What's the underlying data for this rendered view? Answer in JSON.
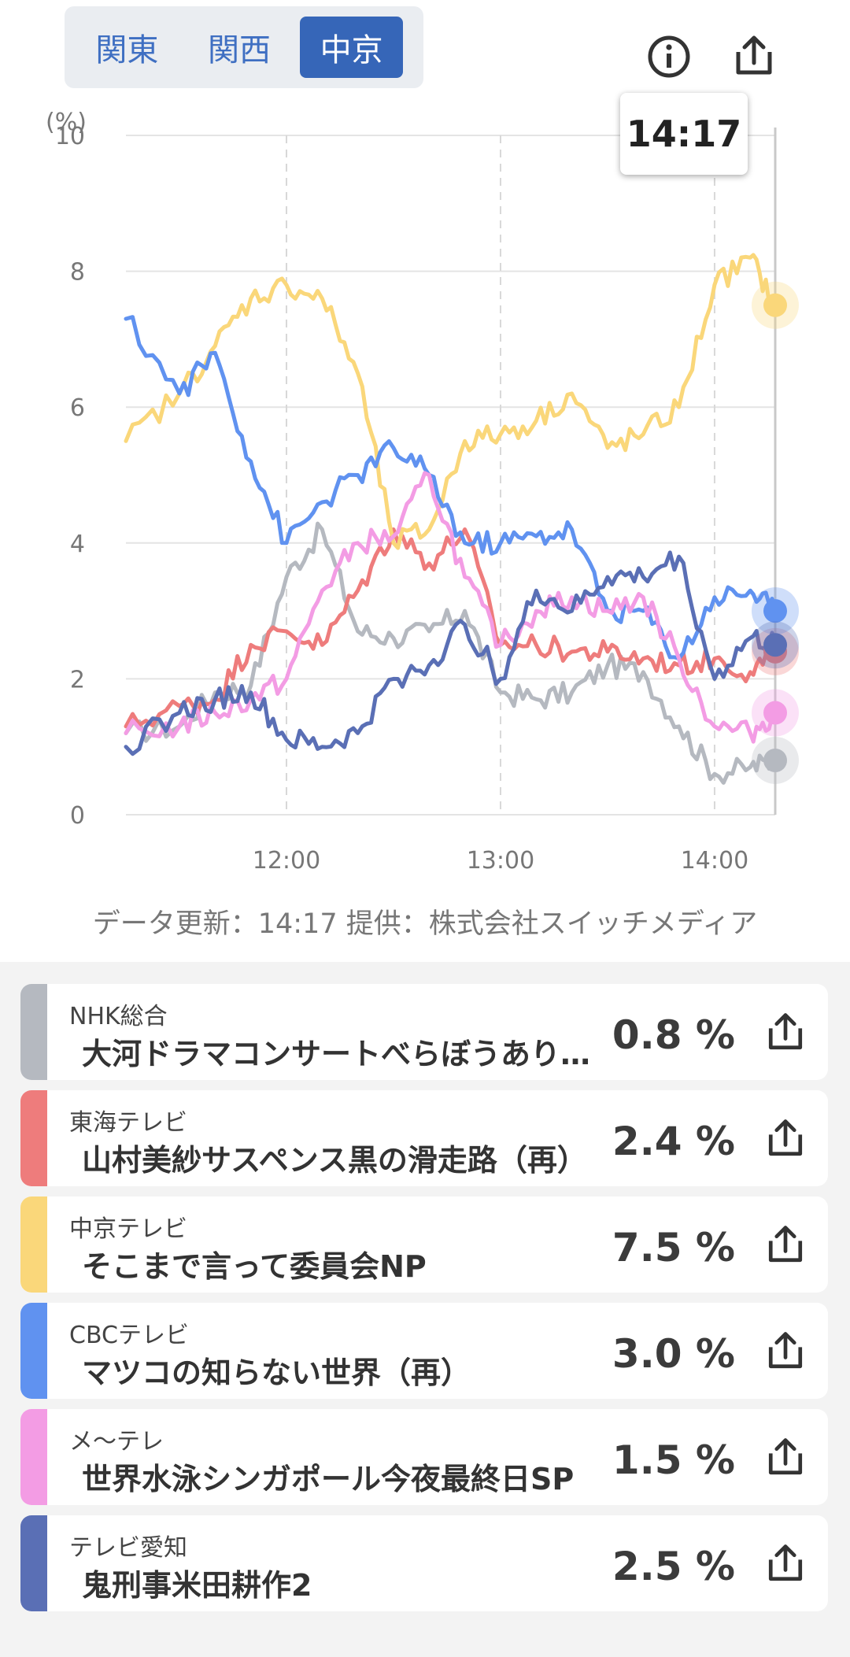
{
  "region_tabs": [
    {
      "label": "関東",
      "active": false
    },
    {
      "label": "関西",
      "active": false
    },
    {
      "label": "中京",
      "active": true
    }
  ],
  "toolbar": {
    "info_icon": "info-icon",
    "share_icon": "share-icon"
  },
  "tooltip": {
    "time": "14:17"
  },
  "footer_note": "データ更新：14:17  提供：株式会社スイッチメディア",
  "colors": {
    "nhk": "#b5b9c0",
    "tokai": "#ee7c7c",
    "chukyo": "#fad77a",
    "cbc": "#6092f0",
    "metele": "#f39ce4",
    "aichi": "#5a6fb5",
    "tab_active": "#3666b8"
  },
  "chart_data": {
    "type": "line",
    "yunit": "(%)",
    "ylim": [
      0,
      10
    ],
    "yticks": [
      "0",
      "2",
      "4",
      "6",
      "8",
      "10"
    ],
    "xticks": [
      "12:00",
      "13:00",
      "14:00"
    ],
    "x": [
      "11:20",
      "11:30",
      "11:40",
      "11:50",
      "12:00",
      "12:10",
      "12:20",
      "12:30",
      "12:40",
      "12:50",
      "13:00",
      "13:10",
      "13:20",
      "13:30",
      "13:40",
      "13:50",
      "14:00",
      "14:10",
      "14:17"
    ],
    "series": [
      {
        "key": "nhk",
        "color": "#b5b9c0",
        "values": [
          1.2,
          1.3,
          1.8,
          1.9,
          3.5,
          4.2,
          2.7,
          2.6,
          2.7,
          3.0,
          1.8,
          1.7,
          1.8,
          2.2,
          2.1,
          1.3,
          0.6,
          0.7,
          0.8
        ]
      },
      {
        "key": "tokai",
        "color": "#ee7c7c",
        "values": [
          1.3,
          1.6,
          1.7,
          2.5,
          2.7,
          2.5,
          3.3,
          4.2,
          3.7,
          4.2,
          2.5,
          2.5,
          2.4,
          2.4,
          2.3,
          2.2,
          2.3,
          2.1,
          2.4
        ]
      },
      {
        "key": "chukyo",
        "color": "#fad77a",
        "values": [
          5.5,
          6.2,
          6.9,
          7.6,
          7.8,
          7.6,
          6.5,
          4.0,
          4.2,
          5.5,
          5.6,
          5.8,
          6.2,
          5.4,
          5.6,
          6.0,
          7.8,
          8.2,
          7.5
        ]
      },
      {
        "key": "cbc",
        "color": "#6092f0",
        "values": [
          7.3,
          6.2,
          6.8,
          5.2,
          4.0,
          4.6,
          5.0,
          5.4,
          5.0,
          4.0,
          4.0,
          4.1,
          4.2,
          3.0,
          3.0,
          2.3,
          3.2,
          3.3,
          3.0
        ]
      },
      {
        "key": "metele",
        "color": "#f39ce4",
        "values": [
          1.2,
          1.3,
          1.5,
          1.7,
          2.0,
          3.3,
          4.0,
          4.1,
          5.0,
          3.5,
          2.5,
          3.0,
          3.2,
          3.0,
          3.2,
          2.3,
          1.3,
          1.2,
          1.5
        ]
      },
      {
        "key": "aichi",
        "color": "#5a6fb5",
        "values": [
          1.0,
          1.5,
          1.7,
          1.8,
          1.1,
          1.0,
          1.2,
          2.0,
          2.2,
          2.8,
          2.0,
          3.3,
          3.0,
          3.5,
          3.5,
          3.8,
          2.0,
          2.6,
          2.5
        ]
      }
    ]
  },
  "programs": [
    {
      "channel": "NHK総合",
      "title": "大河ドラマコンサートべらぼうあり…",
      "value": "0.8 %",
      "color": "#b5b9c0"
    },
    {
      "channel": "東海テレビ",
      "title": "山村美紗サスペンス黒の滑走路（再）",
      "value": "2.4 %",
      "color": "#ee7c7c"
    },
    {
      "channel": "中京テレビ",
      "title": "そこまで言って委員会NP",
      "value": "7.5 %",
      "color": "#fad77a"
    },
    {
      "channel": "CBCテレビ",
      "title": "マツコの知らない世界（再）",
      "value": "3.0 %",
      "color": "#6092f0"
    },
    {
      "channel": "メ～テレ",
      "title": "世界水泳シンガポール今夜最終日SP",
      "value": "1.5 %",
      "color": "#f39ce4"
    },
    {
      "channel": "テレビ愛知",
      "title": "鬼刑事米田耕作2",
      "value": "2.5 %",
      "color": "#5a6fb5"
    }
  ]
}
